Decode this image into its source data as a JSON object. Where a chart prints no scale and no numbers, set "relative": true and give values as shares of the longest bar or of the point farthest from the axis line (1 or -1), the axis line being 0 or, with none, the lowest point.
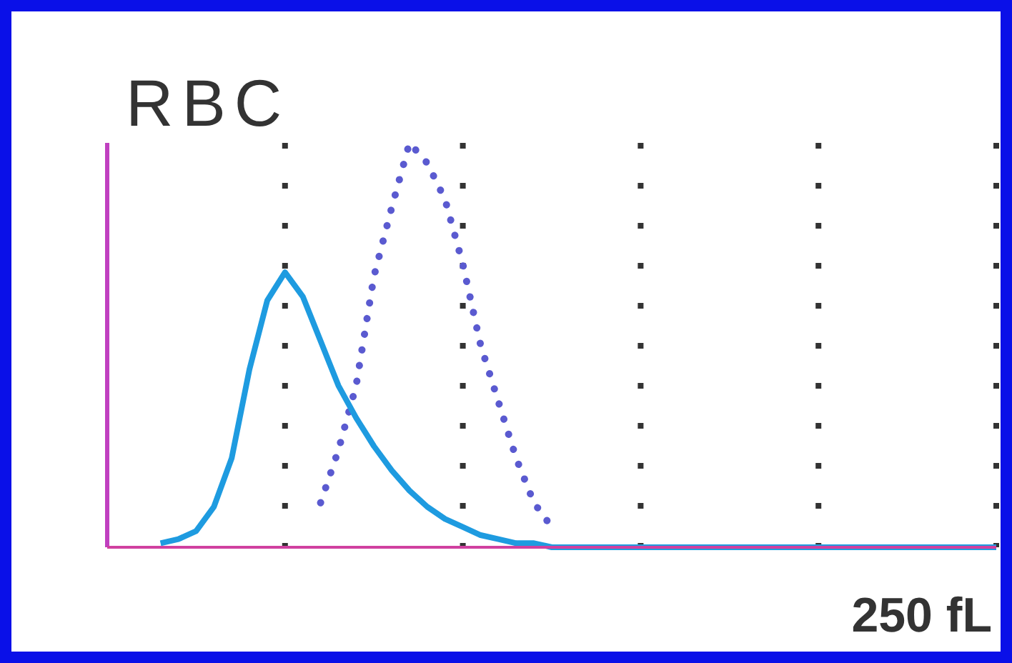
{
  "chart_data": {
    "type": "line",
    "title": "RBC",
    "relative": true,
    "grid": "x",
    "marker": "none",
    "annotations": [
      "250 fL"
    ],
    "categories": [
      null,
      null,
      null,
      null,
      null,
      null,
      null,
      null,
      null,
      null,
      null,
      null,
      null,
      null,
      null,
      null,
      null,
      null,
      null,
      null,
      null,
      null,
      null,
      null,
      null,
      null,
      null,
      null,
      null,
      null,
      null,
      null,
      null,
      null,
      null,
      null,
      null,
      null,
      null,
      null,
      null,
      null,
      null,
      null,
      null,
      null,
      null,
      null,
      null,
      null,
      null
    ],
    "series": [
      {
        "line_style": "dotted",
        "color": "#5a5ad0",
        "values": [
          null,
          null,
          null,
          null,
          null,
          null,
          null,
          null,
          null,
          null,
          null,
          null,
          0.11,
          0.24,
          0.4,
          0.67,
          0.84,
          1,
          0.95,
          0.86,
          0.7,
          0.5,
          0.36,
          0.22,
          0.11,
          0.05,
          null,
          null,
          null,
          null,
          null,
          null,
          null,
          null,
          null,
          null,
          null,
          null,
          null,
          null,
          null,
          null,
          null,
          null,
          null,
          null,
          null,
          null,
          null,
          null,
          null
        ]
      },
      {
        "line_style": "solid",
        "color": "#1e9be0",
        "values": [
          null,
          null,
          null,
          0.01,
          0.02,
          0.04,
          0.1,
          0.22,
          0.44,
          0.61,
          0.68,
          0.62,
          0.51,
          0.4,
          0.32,
          0.25,
          0.19,
          0.14,
          0.1,
          0.07,
          0.05,
          0.03,
          0.02,
          0.01,
          0.01,
          0,
          0,
          0,
          0,
          0,
          0,
          0,
          0,
          0,
          0,
          0,
          0,
          0,
          0,
          0,
          0,
          0,
          0,
          0,
          0,
          0,
          0,
          0,
          0,
          0,
          0
        ]
      }
    ]
  }
}
